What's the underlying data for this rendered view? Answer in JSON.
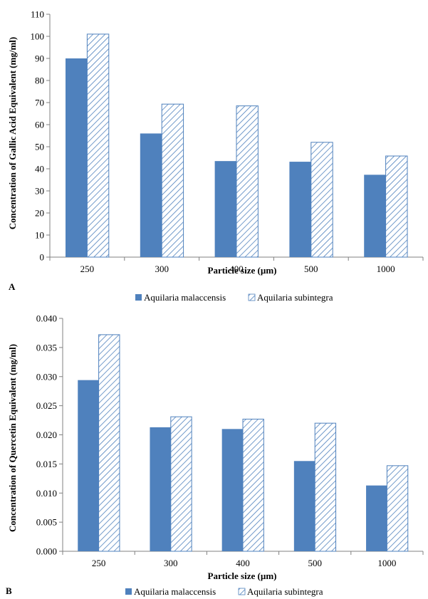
{
  "colors": {
    "malaccensis": "#4f81bd",
    "subintegra_stroke": "#4f81bd",
    "axis": "#808080",
    "text": "#000000"
  },
  "chart_data": [
    {
      "type": "bar",
      "panel_label": "A",
      "categories": [
        "250",
        "300",
        "400",
        "500",
        "1000"
      ],
      "series": [
        {
          "name": "Aquilaria malaccensis",
          "values": [
            90,
            56,
            43.5,
            43.2,
            37.3
          ],
          "pattern": "solid"
        },
        {
          "name": "Aquilaria subintegra",
          "values": [
            101,
            69.3,
            68.5,
            52,
            45.8
          ],
          "pattern": "diagonal-hatch"
        }
      ],
      "xlabel": "Particle size (µm)",
      "ylabel": "Concentration of Gallic Acid Equivalent (mg/ml)",
      "ylim": [
        0,
        110
      ],
      "yticks": [
        "0",
        "10",
        "20",
        "30",
        "40",
        "50",
        "60",
        "70",
        "80",
        "90",
        "100",
        "110"
      ],
      "grid": false,
      "legend": "bottom"
    },
    {
      "type": "bar",
      "panel_label": "B",
      "categories": [
        "250",
        "300",
        "400",
        "500",
        "1000"
      ],
      "series": [
        {
          "name": "Aquilaria malaccensis",
          "values": [
            0.0294,
            0.0213,
            0.021,
            0.0155,
            0.0113
          ],
          "pattern": "solid"
        },
        {
          "name": "Aquilaria subintegra",
          "values": [
            0.0372,
            0.0231,
            0.0227,
            0.022,
            0.0147
          ],
          "pattern": "diagonal-hatch"
        }
      ],
      "xlabel": "Particle size (µm)",
      "ylabel": "Concentration of Quercetin Equivalent (mg/ml)",
      "ylim": [
        0,
        0.04
      ],
      "yticks": [
        "0.000",
        "0.005",
        "0.010",
        "0.015",
        "0.020",
        "0.025",
        "0.030",
        "0.035",
        "0.040"
      ],
      "grid": false,
      "legend": "bottom"
    }
  ]
}
